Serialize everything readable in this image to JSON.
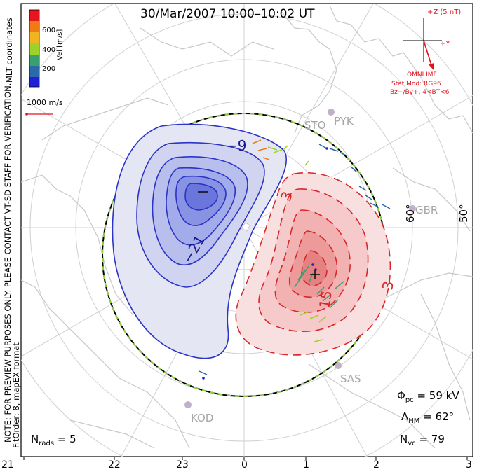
{
  "title": "30/Mar/2007  10:00–10:02  UT",
  "colorbar": {
    "label": "Vel [m/s]",
    "ticks": [
      "600",
      "400",
      "200"
    ],
    "colors": [
      "#e8141e",
      "#f07a14",
      "#f0b420",
      "#9cd22a",
      "#3aa070",
      "#2a6aa8",
      "#2020d8"
    ]
  },
  "mlt_label": "MLT coordinates",
  "vector_scale": "1000 m/s",
  "imf": {
    "z_label": "+Z (5 nT)",
    "y_label": "+Y",
    "source": "OMNI IMF",
    "model": "Stat Mod: RG96",
    "condition": "Bz−/By+, 4<BT<6"
  },
  "note": "NOTE: FOR PREVIEW PURPOSES ONLY. PLEASE CONTACT VT-SD STAFF FOR VERIFICATION.",
  "fit_order": "FitOrder: 8, mapEX format",
  "stations": [
    "STO",
    "PYK",
    "GBR",
    "SAS",
    "KOD"
  ],
  "latitude_labels": [
    "60°",
    "50°"
  ],
  "contours": {
    "negative": [
      "−9",
      "−21",
      "−"
    ],
    "positive": [
      "3",
      "3",
      "15",
      "+"
    ]
  },
  "stats": {
    "phi_pc": "Φpc = 59 kV",
    "phi_symbol": "Φ",
    "phi_sub": "pc",
    "phi_value": "= 59 kV",
    "lambda_symbol": "Λ",
    "lambda_sub": "HM",
    "lambda_value": "= 62°",
    "nvc_symbol": "N",
    "nvc_sub": "vc",
    "nvc_value": "= 79",
    "nrads_symbol": "N",
    "nrads_sub": "rads",
    "nrads_value": "= 5"
  },
  "mlt_ticks": [
    "21",
    "22",
    "23",
    "0",
    "1",
    "2",
    "3"
  ],
  "colors": {
    "negative_cell": "#2b33c8",
    "positive_cell": "#d8262a",
    "coast": "#c8c8c8",
    "grid": "#d0d0d0",
    "annotation_red": "#e0141e"
  }
}
